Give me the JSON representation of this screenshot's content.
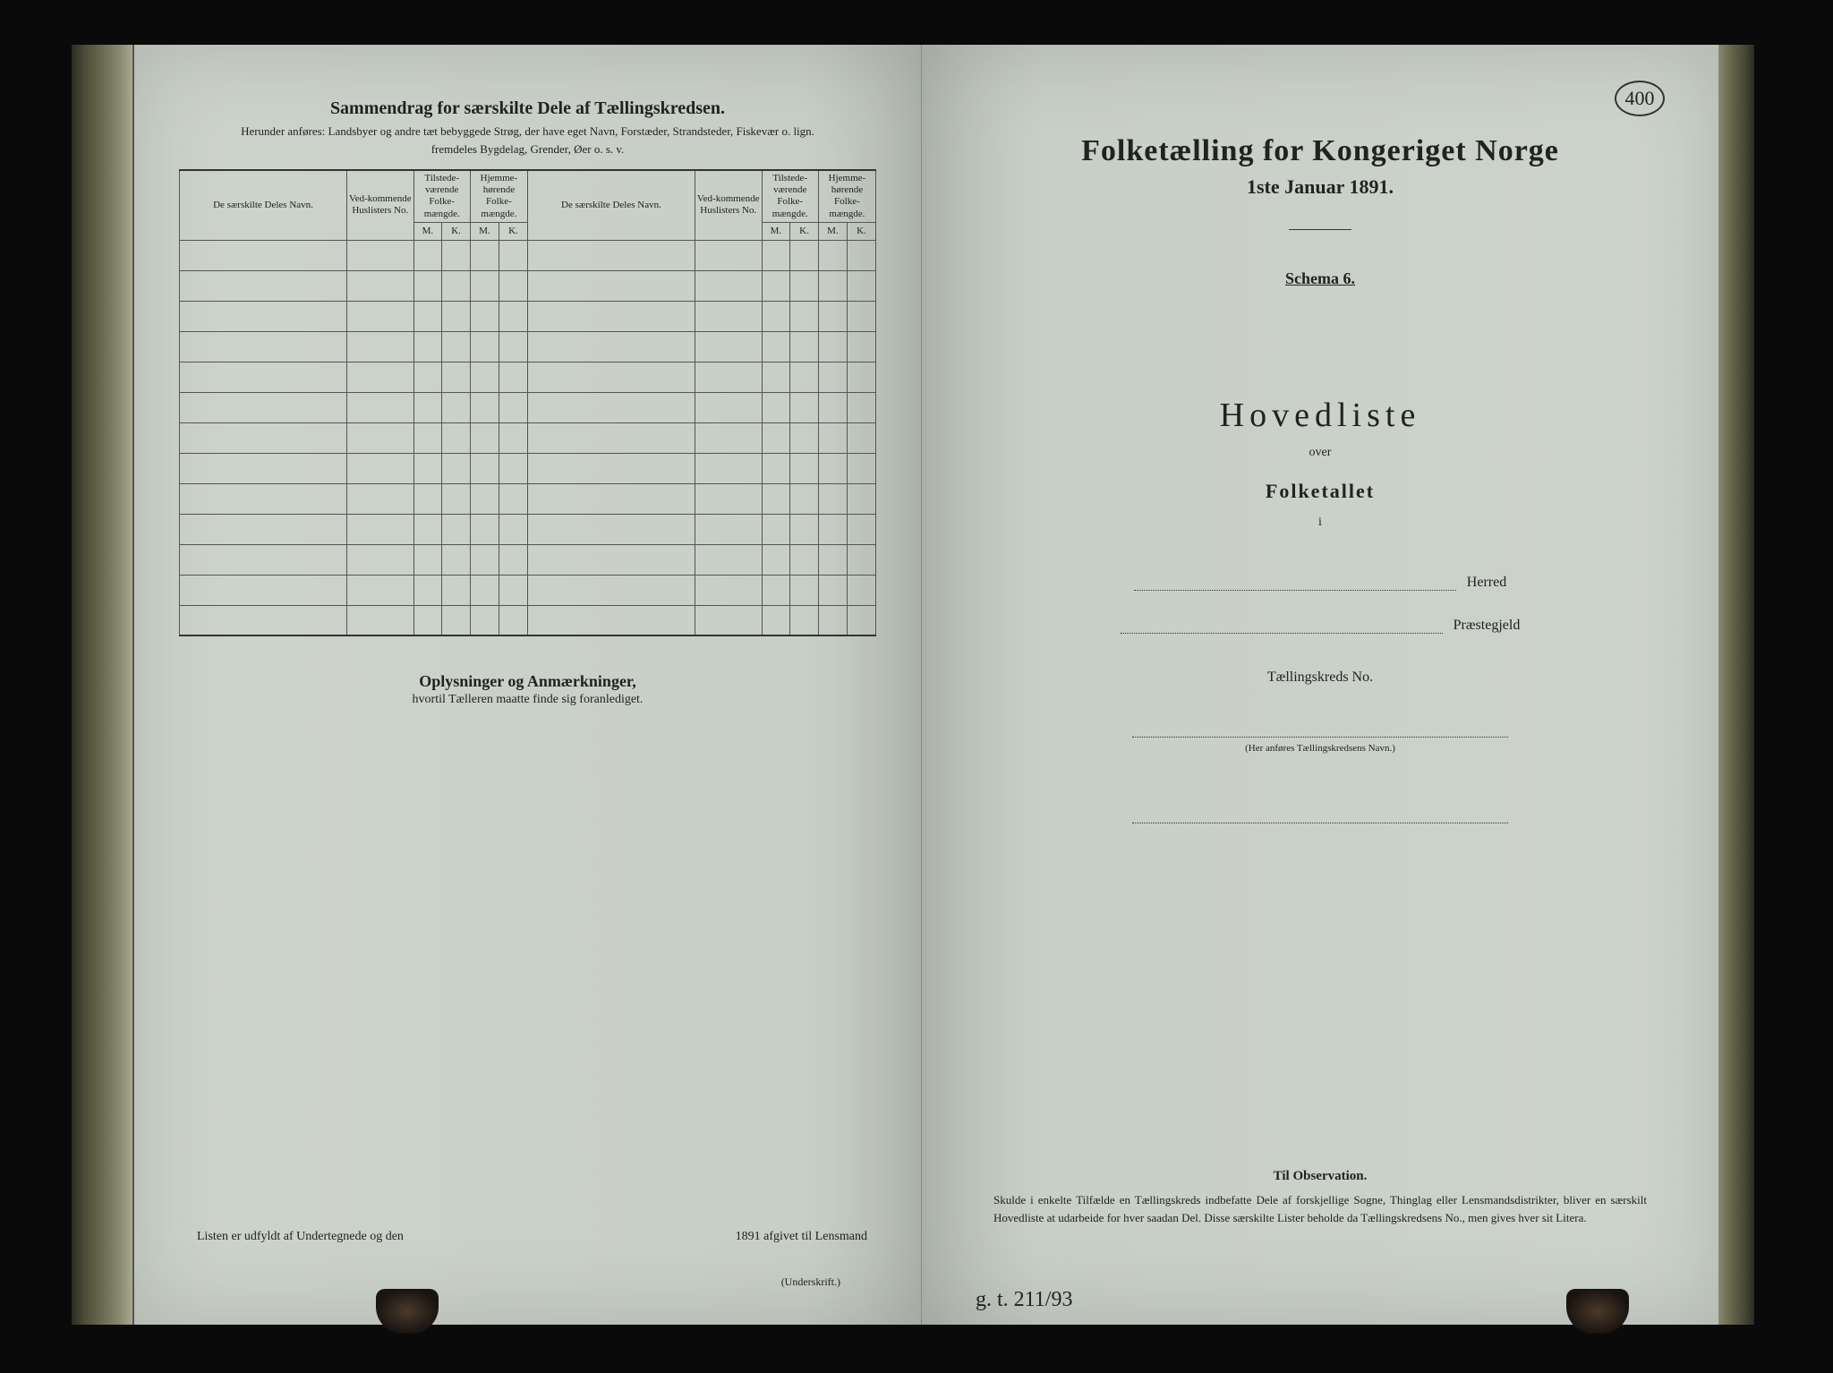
{
  "page_number": "400",
  "left_page": {
    "title": "Sammendrag for særskilte Dele af Tællingskredsen.",
    "subtitle": "Herunder anføres:  Landsbyer og andre tæt bebyggede Strøg, der have eget Navn, Forstæder, Strandsteder, Fiskevær o. lign.",
    "subtitle2": "fremdeles Bygdelag, Grender, Øer o. s. v.",
    "table": {
      "col_name": "De særskilte Deles Navn.",
      "col_no": "Ved-kommende Huslisters No.",
      "col_present": "Tilstede-værende Folke-mængde.",
      "col_home": "Hjemme-hørende Folke-mængde.",
      "sub_m": "M.",
      "sub_k": "K.",
      "row_count": 13
    },
    "notes_heading": "Oplysninger og Anmærkninger,",
    "notes_sub": "hvortil Tælleren maatte finde sig foranlediget.",
    "footer_a": "Listen er udfyldt af Undertegnede og den",
    "footer_b": "1891 afgivet til Lensmand",
    "footer_sign": "(Underskrift.)"
  },
  "right_page": {
    "title": "Folketælling for Kongeriget Norge",
    "date": "1ste Januar 1891.",
    "schema": "Schema 6.",
    "hovedliste": "Hovedliste",
    "over": "over",
    "folketallet": "Folketallet",
    "i": "i",
    "herred": "Herred",
    "praestegjeld": "Præstegjeld",
    "kreds": "Tællingskreds No.",
    "small_note": "(Her anføres Tællingskredsens Navn.)",
    "obs_title": "Til Observation.",
    "obs_text": "Skulde i enkelte Tilfælde en Tællingskreds indbefatte Dele af forskjellige Sogne, Thinglag eller Lensmandsdistrikter, bliver en særskilt Hovedliste at udarbeide for hver saadan Del. Disse særskilte Lister beholde da Tællingskredsens No., men gives hver sit Litera.",
    "handwriting": "g. t. 211/93"
  },
  "colors": {
    "paper": "#cdd4cb",
    "ink": "#222222",
    "background": "#0a0a0a",
    "border": "#555555"
  }
}
